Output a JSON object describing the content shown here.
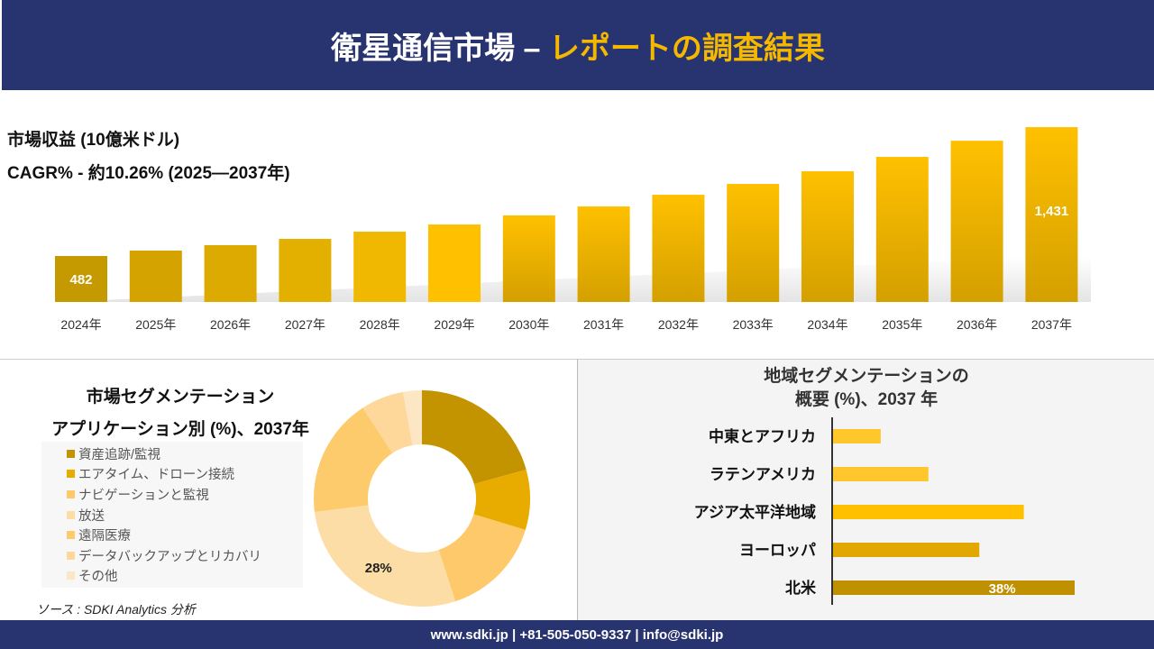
{
  "header": {
    "title_main": "衛星通信市場 –",
    "title_accent": "レポートの調査結果"
  },
  "revenue": {
    "label": "市場収益 (10億米ドル)",
    "cagr": "CAGR% - 約10.26% (2025—2037年)"
  },
  "colors": {
    "header_bg": "#283470",
    "accent": "#f5b800",
    "bar_dark": "#c49a00",
    "bar_bright": "#ffc000"
  },
  "chart_data": [
    {
      "type": "bar",
      "categories": [
        "2024年",
        "2025年",
        "2026年",
        "2027年",
        "2028年",
        "2029年",
        "2030年",
        "2031年",
        "2032年",
        "2033年",
        "2034年",
        "2035年",
        "2036年",
        "2037年"
      ],
      "values": [
        482,
        522,
        562,
        608,
        661,
        714,
        781,
        847,
        933,
        1013,
        1106,
        1212,
        1331,
        1431
      ],
      "data_labels": {
        "0": "482",
        "13": "1,431"
      },
      "ylim": [
        143,
        1431
      ],
      "grid": false
    },
    {
      "type": "pie",
      "title": "市場セグメンテーション",
      "subtitle": "アプリケーション別 (%)、2037年",
      "categories": [
        "資産追跡/監視",
        "エアタイム、ドローン接続",
        "ナビゲーションと監視",
        "放送",
        "遠隔医療",
        "データバックアップとリカバリ",
        "その他"
      ],
      "values": [
        20.7,
        9,
        15.3,
        28,
        17.8,
        6.4,
        2.8
      ],
      "colors": [
        "#c49300",
        "#e8ac00",
        "#fdc96a",
        "#fddda6",
        "#fdca6c",
        "#fdd89a",
        "#fde6c4"
      ],
      "data_labels": {
        "3": "28%"
      },
      "legend": "left"
    },
    {
      "type": "bar",
      "orientation": "horizontal",
      "title": "地域セグメンテーションの",
      "subtitle": "概要 (%)、2037 年",
      "categories": [
        "中東とアフリカ",
        "ラテンアメリカ",
        "アジア太平洋地域",
        "ヨーロッパ",
        "北米"
      ],
      "values": [
        7.5,
        15,
        30,
        23,
        38
      ],
      "colors": [
        "#ffc72c",
        "#ffc72c",
        "#ffc000",
        "#e0a800",
        "#bf9000"
      ],
      "data_labels": {
        "4": "38%"
      }
    }
  ],
  "source": "ソース : SDKI Analytics 分析",
  "footer": "www.sdki.jp | +81-505-050-9337 | info@sdki.jp"
}
